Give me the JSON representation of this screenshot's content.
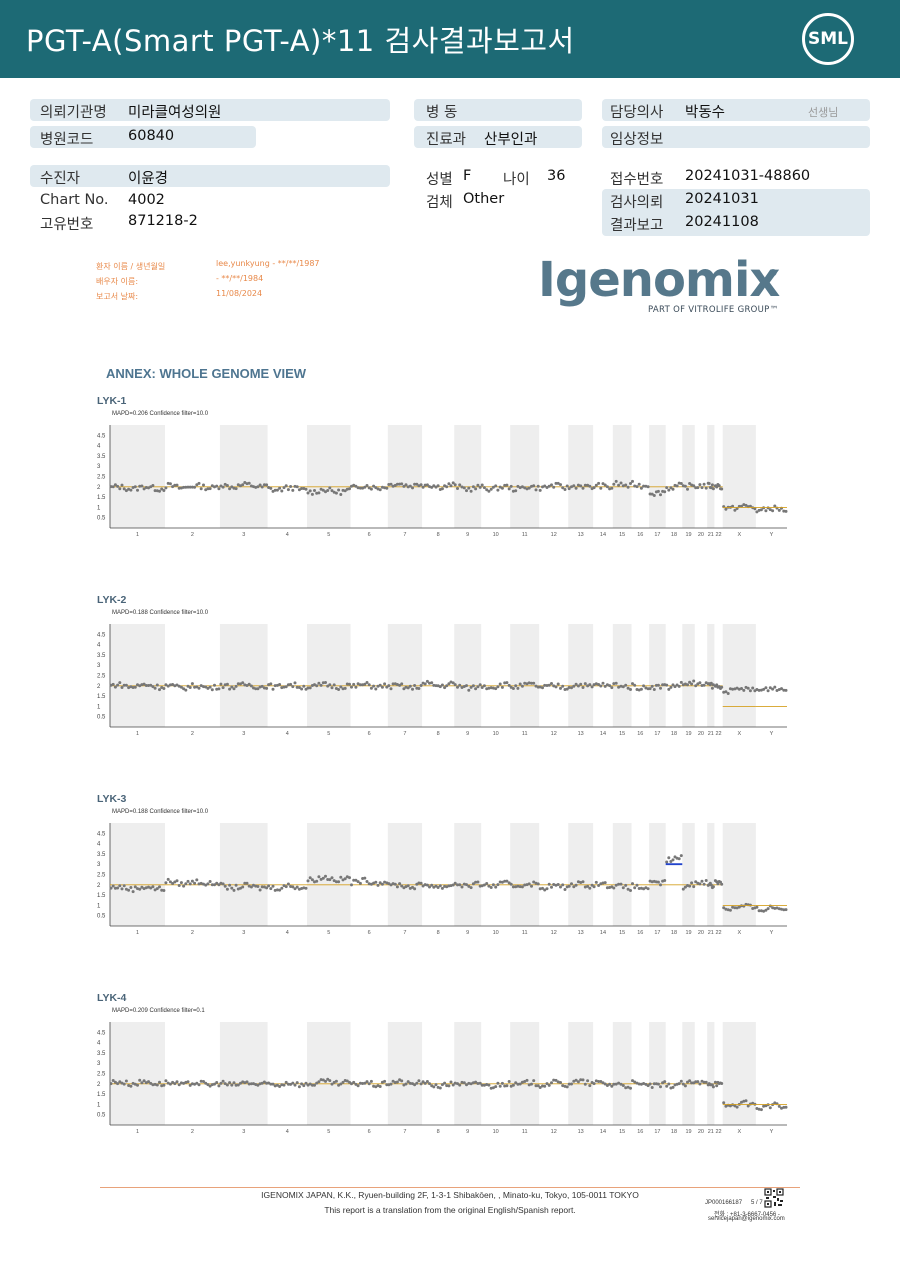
{
  "header": {
    "title": "PGT-A(Smart  PGT-A)*11 검사결과보고서",
    "logo_text": "SML"
  },
  "patient_info": {
    "institution_label": "의뢰기관명",
    "institution_value": "미라클여성의원",
    "hospital_code_label": "병원코드",
    "hospital_code_value": "60840",
    "patient_label": "수진자",
    "patient_value": "이윤경",
    "chart_label": "Chart No.",
    "chart_value": "4002",
    "unique_label": "고유번호",
    "unique_value": "871218-2",
    "ward_label": "병  동",
    "ward_value": "",
    "dept_label": "진료과",
    "dept_value": "산부인과",
    "sex_label": "성별",
    "sex_value": "F",
    "age_label": "나이",
    "age_value": "36",
    "specimen_label": "검체",
    "specimen_value": "Other",
    "doctor_label": "담당의사",
    "doctor_value": "박동수",
    "doctor_suffix": "선생님",
    "clinical_label": "임상정보",
    "clinical_value": "",
    "receipt_label": "접수번호",
    "receipt_value": "20241031-48860",
    "request_label": "검사의뢰",
    "request_value": "20241031",
    "report_label": "결과보고",
    "report_value": "20241108"
  },
  "translation_header": {
    "patient_name_label": "환자 이름 / 생년월일",
    "patient_name_value": "lee,yunkyung - **/**/1987",
    "partner_label": "배우자 이름:",
    "partner_value": "- **/**/1984",
    "report_date_label": "보고서 날짜:",
    "report_date_value": "11/08/2024"
  },
  "brand": {
    "name": "Igenomix",
    "registered": "®",
    "subtitle": "PART OF VITROLIFE GROUP™"
  },
  "annex_title": "ANNEX: WHOLE GENOME VIEW",
  "colors": {
    "header_bg": "#1d6a75",
    "field_bg": "#dfe9ef",
    "orange_text": "#e8894a",
    "baseline": "#d4a020",
    "dots": "#777777",
    "blue_marker": "#2244cc",
    "band": "#eeeeee"
  },
  "chart_data": [
    {
      "type": "scatter",
      "title": "LYK-1",
      "subtitle": "MAPD=0.206 Confidence filter=10.0",
      "y_ticks": [
        "4.5",
        "4",
        "3.5",
        "3",
        "2.5",
        "2",
        "1.5",
        "1",
        "0.5"
      ],
      "categories": [
        "1",
        "2",
        "3",
        "4",
        "5",
        "6",
        "7",
        "8",
        "9",
        "10",
        "11",
        "12",
        "13",
        "14",
        "15",
        "16",
        "17",
        "18",
        "19",
        "20",
        "21",
        "22",
        "X",
        "Y"
      ],
      "values": [
        1.95,
        2.0,
        2.05,
        1.9,
        1.8,
        2.0,
        2.1,
        2.05,
        1.95,
        1.95,
        1.95,
        2.0,
        2.0,
        2.0,
        2.1,
        2.1,
        1.75,
        2.0,
        2.0,
        2.0,
        2.0,
        2.05,
        1.0,
        0.9
      ],
      "ylim": [
        0,
        5
      ],
      "baseline": 2.0
    },
    {
      "type": "scatter",
      "title": "LYK-2",
      "subtitle": "MAPD=0.188 Confidence filter=10.0",
      "y_ticks": [
        "4.5",
        "4",
        "3.5",
        "3",
        "2.5",
        "2",
        "1.5",
        "1",
        "0.5"
      ],
      "categories": [
        "1",
        "2",
        "3",
        "4",
        "5",
        "6",
        "7",
        "8",
        "9",
        "10",
        "11",
        "12",
        "13",
        "14",
        "15",
        "16",
        "17",
        "18",
        "19",
        "20",
        "21",
        "22",
        "X",
        "Y"
      ],
      "values": [
        2.0,
        1.95,
        2.0,
        2.0,
        2.0,
        2.0,
        1.95,
        2.05,
        1.95,
        2.0,
        2.0,
        1.95,
        2.0,
        2.0,
        2.0,
        1.95,
        2.0,
        2.0,
        2.1,
        2.0,
        2.0,
        1.95,
        1.8,
        1.85
      ],
      "ylim": [
        0,
        5
      ],
      "baseline": 2.0
    },
    {
      "type": "scatter",
      "title": "LYK-3",
      "subtitle": "MAPD=0.188 Confidence filter=10.0",
      "y_ticks": [
        "4.5",
        "4",
        "3.5",
        "3",
        "2.5",
        "2",
        "1.5",
        "1",
        "0.5"
      ],
      "categories": [
        "1",
        "2",
        "3",
        "4",
        "5",
        "6",
        "7",
        "8",
        "9",
        "10",
        "11",
        "12",
        "13",
        "14",
        "15",
        "16",
        "17",
        "18",
        "19",
        "20",
        "21",
        "22",
        "X",
        "Y"
      ],
      "values": [
        1.85,
        2.1,
        1.9,
        1.9,
        2.3,
        2.15,
        1.95,
        1.95,
        2.0,
        2.0,
        2.0,
        1.9,
        2.0,
        2.0,
        1.9,
        1.9,
        2.1,
        3.25,
        1.95,
        2.1,
        1.95,
        2.15,
        0.9,
        0.85
      ],
      "ylim": [
        0,
        5
      ],
      "baseline": 2.0,
      "highlight": {
        "category": "18",
        "value": 3.0
      }
    },
    {
      "type": "scatter",
      "title": "LYK-4",
      "subtitle": "MAPD=0.209 Confidence filter=0.1",
      "y_ticks": [
        "4.5",
        "4",
        "3.5",
        "3",
        "2.5",
        "2",
        "1.5",
        "1",
        "0.5"
      ],
      "categories": [
        "1",
        "2",
        "3",
        "4",
        "5",
        "6",
        "7",
        "8",
        "9",
        "10",
        "11",
        "12",
        "13",
        "14",
        "15",
        "16",
        "17",
        "18",
        "19",
        "20",
        "21",
        "22",
        "X",
        "Y"
      ],
      "values": [
        2.05,
        2.0,
        2.0,
        2.0,
        2.05,
        2.0,
        2.05,
        1.95,
        2.0,
        1.95,
        2.0,
        2.0,
        2.05,
        2.0,
        1.95,
        2.0,
        1.95,
        1.95,
        2.0,
        2.0,
        2.0,
        2.0,
        1.0,
        0.9
      ],
      "ylim": [
        0,
        5
      ],
      "baseline": 2.0
    }
  ],
  "footer": {
    "address": "IGENOMIX JAPAN, K.K., Ryuen-building 2F, 1-3-1 Shibakōen, , Minato-ku, Tokyo, 105-0011 TOKYO",
    "note": "This report is a translation from the original English/Spanish report.",
    "doc_code": "JP000166187",
    "page": "5 / 7",
    "tel": "전화 : +81-3-6667-0456 -",
    "email": "servicejapan@igenomix.com"
  }
}
